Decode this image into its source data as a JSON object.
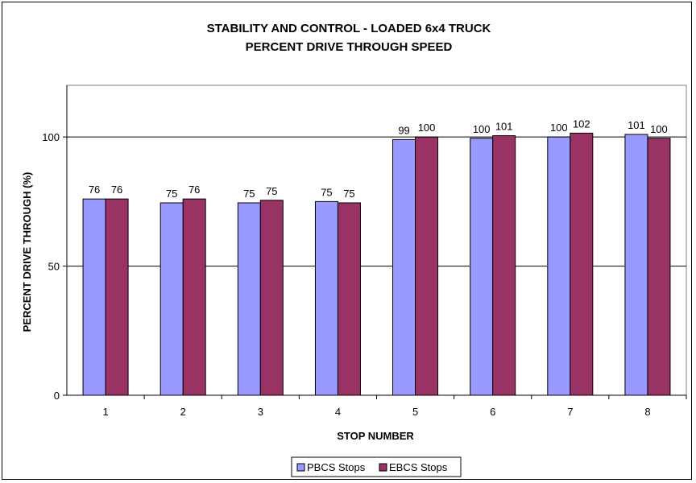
{
  "chart_data": {
    "type": "bar",
    "title": "STABILITY AND CONTROL - LOADED 6x4 TRUCK",
    "subtitle": "PERCENT DRIVE THROUGH SPEED",
    "xlabel": "STOP NUMBER",
    "ylabel": "PERCENT DRIVE THROUGH (%)",
    "categories": [
      "1",
      "2",
      "3",
      "4",
      "5",
      "6",
      "7",
      "8"
    ],
    "series": [
      {
        "name": "PBCS Stops",
        "color": "#9999ff",
        "values": [
          76,
          74.5,
          74.5,
          75,
          99,
          99.5,
          100,
          101
        ],
        "labels": [
          "76",
          "75",
          "75",
          "75",
          "99",
          "100",
          "100",
          "101"
        ]
      },
      {
        "name": "EBCS Stops",
        "color": "#993366",
        "values": [
          76,
          76,
          75.5,
          74.5,
          100,
          100.5,
          101.5,
          99.5
        ],
        "labels": [
          "76",
          "76",
          "75",
          "75",
          "100",
          "101",
          "102",
          "100"
        ]
      }
    ],
    "ylim": [
      0,
      120
    ],
    "yticks": [
      0,
      50,
      100
    ],
    "grid": true,
    "legend_position": "bottom",
    "plot_background": "#ffffff"
  }
}
